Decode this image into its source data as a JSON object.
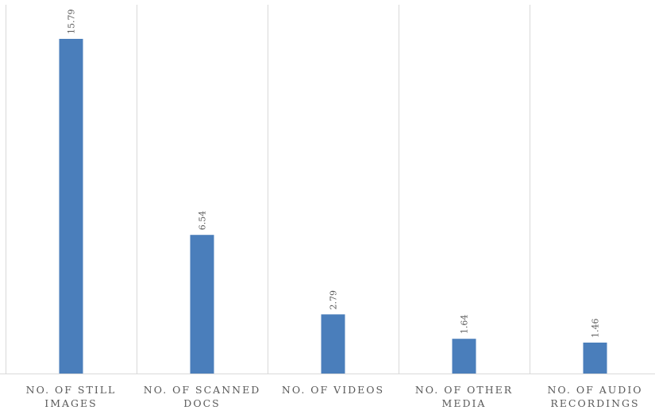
{
  "chart_data": {
    "type": "bar",
    "title": "",
    "xlabel": "",
    "ylabel": "",
    "categories": [
      [
        "NO. OF STILL",
        "IMAGES"
      ],
      [
        "NO. OF SCANNED",
        "DOCS"
      ],
      [
        "NO. OF VIDEOS"
      ],
      [
        "NO. OF OTHER",
        "MEDIA"
      ],
      [
        "NO. OF AUDIO",
        "RECORDINGS"
      ]
    ],
    "values": [
      15.79,
      6.54,
      2.79,
      1.64,
      1.46
    ],
    "data_labels": [
      "15.79",
      "6.54",
      "2.79",
      "1.64",
      "1.46"
    ],
    "ylim": [
      0,
      17.4
    ],
    "grid": false,
    "category_separators": true,
    "legend": "none",
    "bar_color": "#4a7ebb",
    "separator_color": "#d9d9d9",
    "text_color": "#595959"
  }
}
